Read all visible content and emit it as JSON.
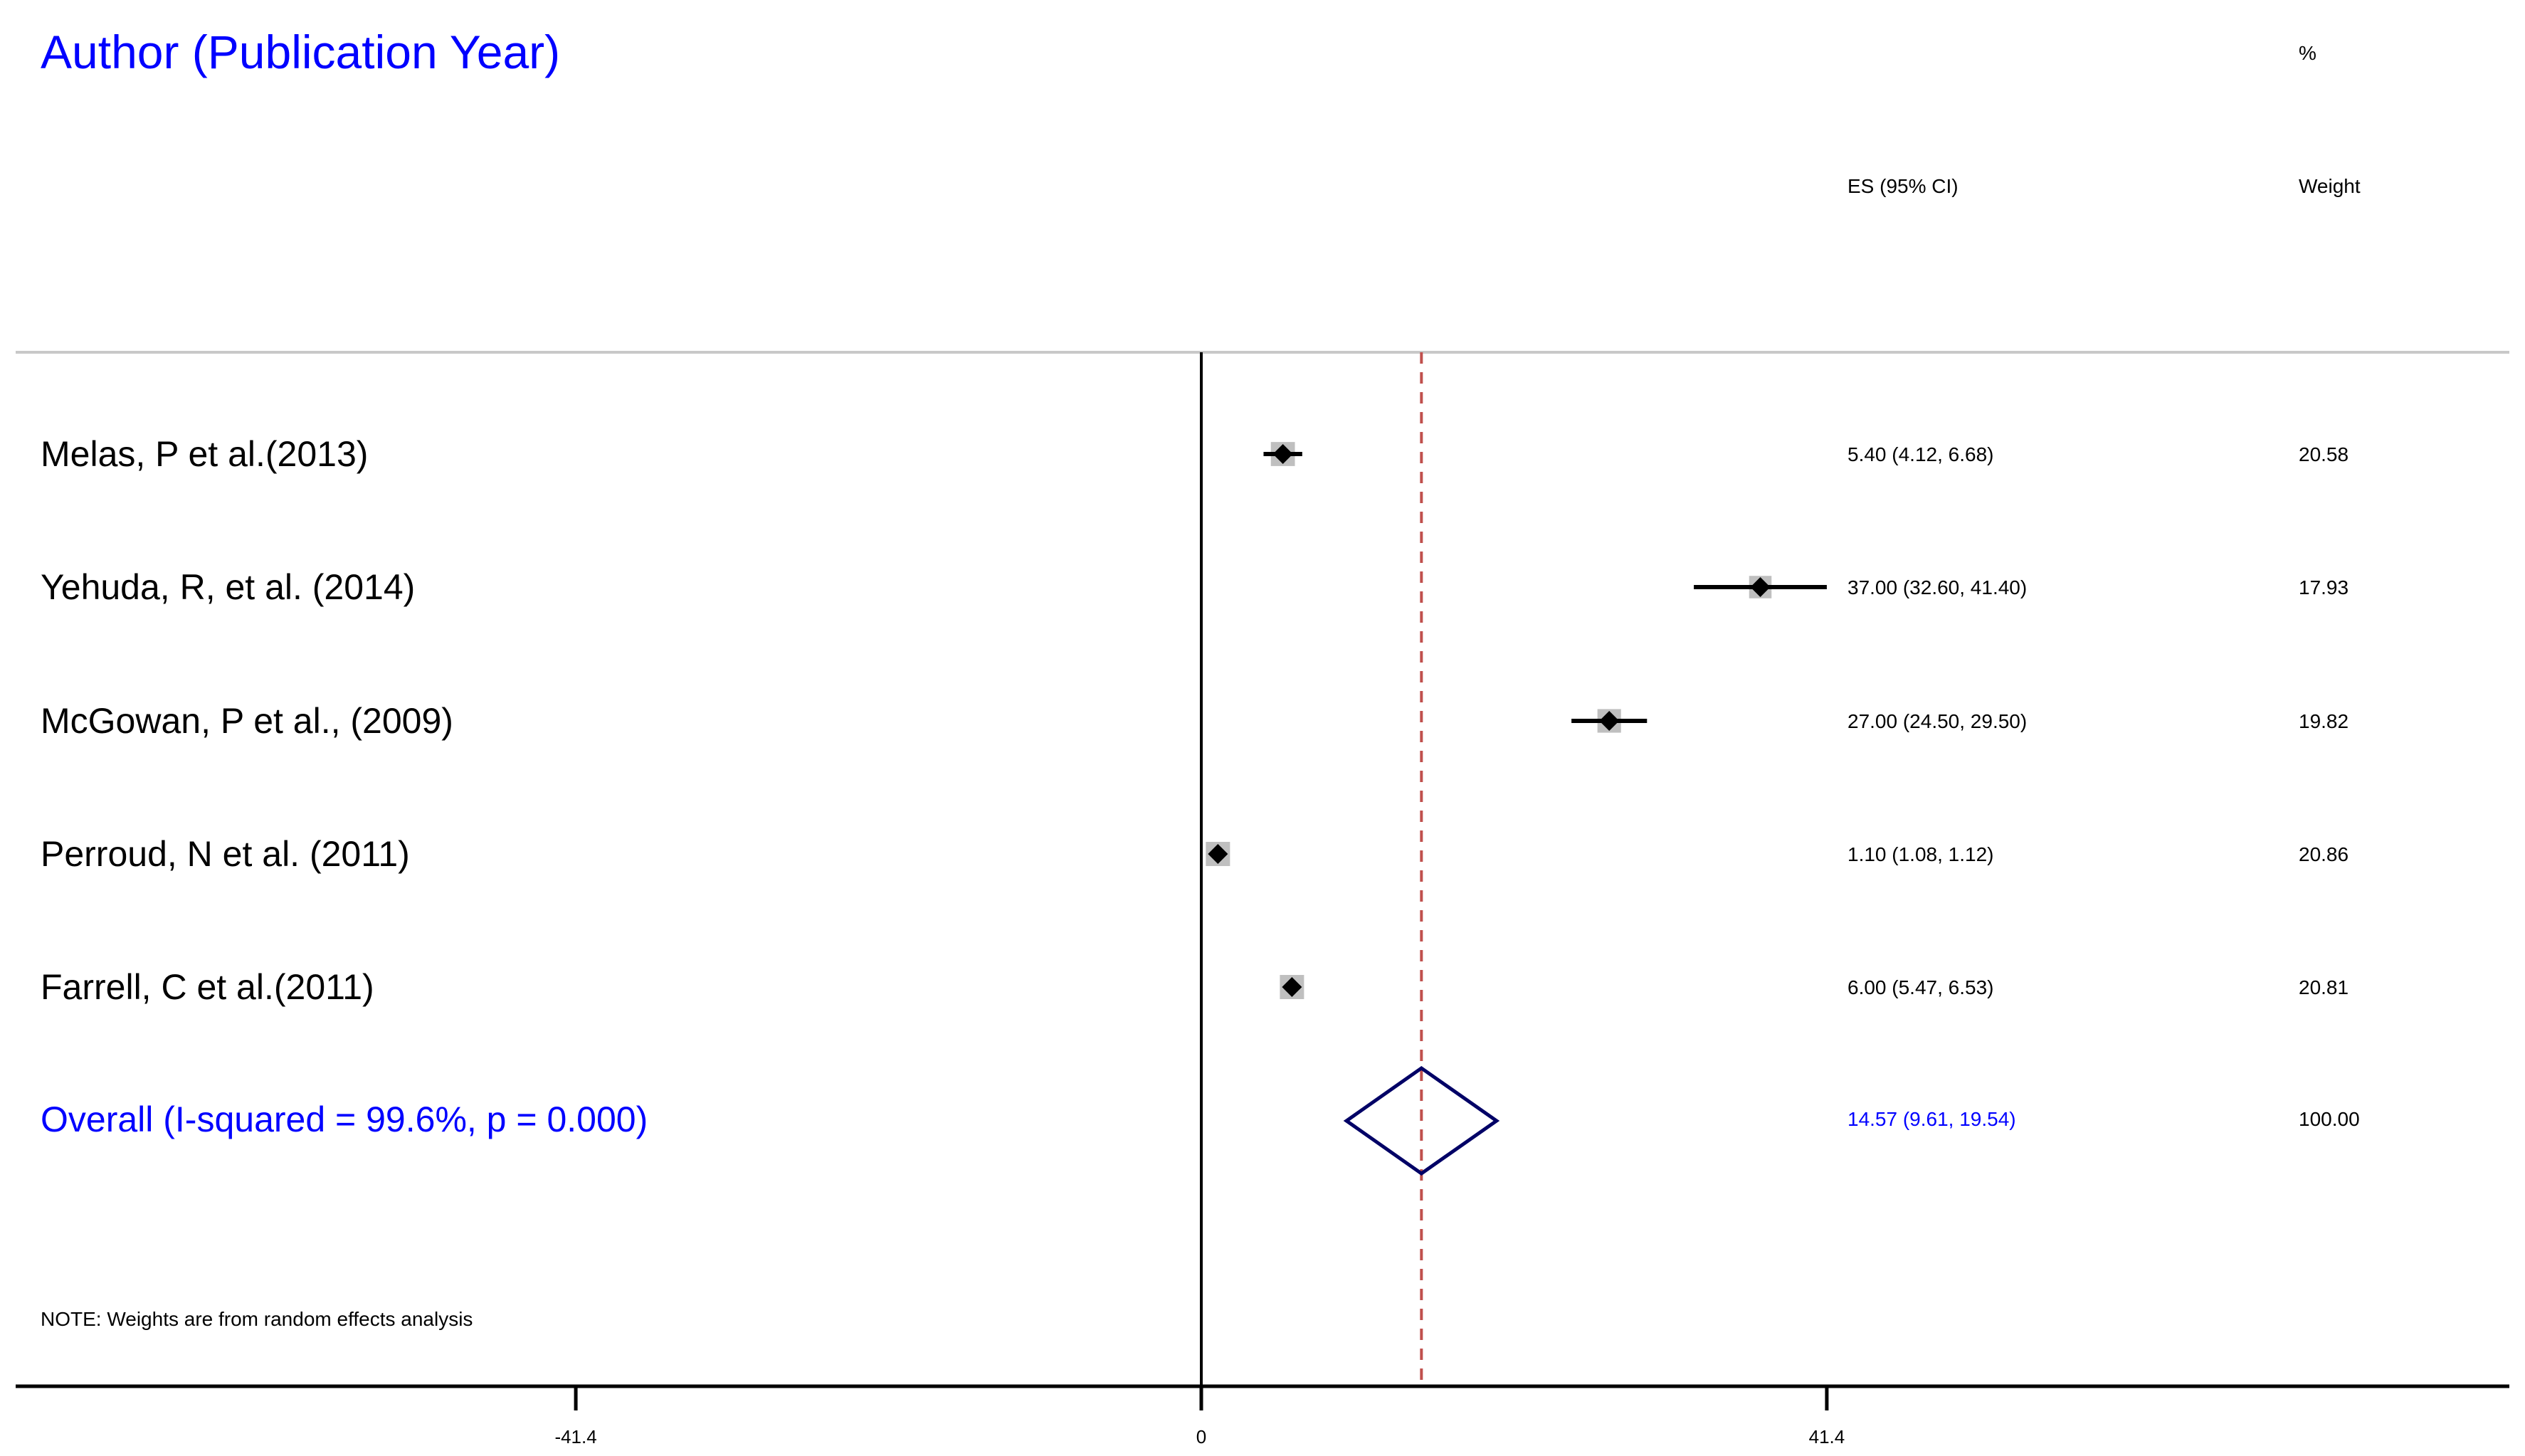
{
  "header": {
    "title": "Author (Publication Year)",
    "percent_label": "%",
    "es_label": "ES (95% CI)",
    "weight_label": "Weight"
  },
  "note": "NOTE: Weights are from random effects analysis",
  "colors": {
    "study_text": "#000000",
    "overall_text": "#0000ff",
    "diamond": "#000066",
    "reference_line": "#c0504d",
    "weight_box": "#bfbfbf",
    "separator": "#c8c8c8"
  },
  "chart_data": {
    "type": "forest",
    "title": "Author (Publication Year)",
    "xlabel": "",
    "ylabel": "",
    "xlim": [
      -47,
      70
    ],
    "null_line": 0,
    "overall_line": 14.57,
    "ticks": [
      {
        "value": -41.4,
        "label": "-41.4"
      },
      {
        "value": 0,
        "label": "0"
      },
      {
        "value": 41.4,
        "label": "41.4"
      }
    ],
    "studies": [
      {
        "label": "Melas, P et al.(2013)",
        "es": 5.4,
        "lower": 4.12,
        "upper": 6.68,
        "es_text": "5.40 (4.12, 6.68)",
        "weight": 20.58,
        "weight_text": "20.58"
      },
      {
        "label": "Yehuda, R, et al. (2014)",
        "es": 37.0,
        "lower": 32.6,
        "upper": 41.4,
        "es_text": "37.00 (32.60, 41.40)",
        "weight": 17.93,
        "weight_text": "17.93"
      },
      {
        "label": "McGowan, P et al., (2009)",
        "es": 27.0,
        "lower": 24.5,
        "upper": 29.5,
        "es_text": "27.00 (24.50, 29.50)",
        "weight": 19.82,
        "weight_text": "19.82"
      },
      {
        "label": "Perroud, N et al. (2011)",
        "es": 1.1,
        "lower": 1.08,
        "upper": 1.12,
        "es_text": "1.10 (1.08, 1.12)",
        "weight": 20.86,
        "weight_text": "20.86"
      },
      {
        "label": "Farrell, C et al.(2011)",
        "es": 6.0,
        "lower": 5.47,
        "upper": 6.53,
        "es_text": "6.00 (5.47, 6.53)",
        "weight": 20.81,
        "weight_text": "20.81"
      }
    ],
    "overall": {
      "label": "Overall  (I-squared = 99.6%, p = 0.000)",
      "es": 14.57,
      "lower": 9.61,
      "upper": 19.54,
      "es_text": "14.57 (9.61, 19.54)",
      "weight": 100.0,
      "weight_text": "100.00"
    }
  }
}
